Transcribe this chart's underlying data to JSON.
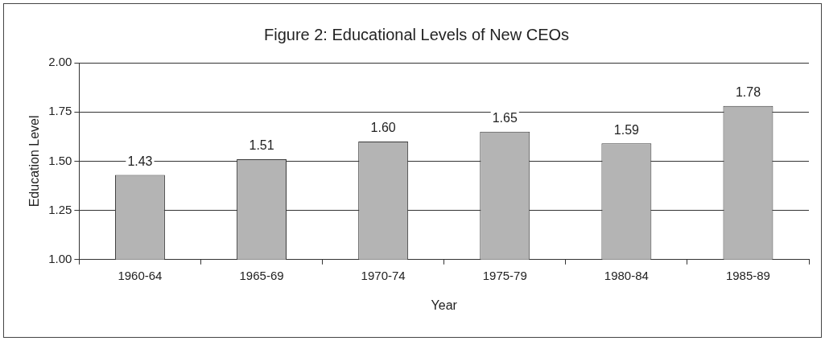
{
  "chart_data": {
    "type": "bar",
    "title": "Figure 2: Educational Levels of New CEOs",
    "xlabel": "Year",
    "ylabel": "Education Level",
    "categories": [
      "1960-64",
      "1965-69",
      "1970-74",
      "1975-79",
      "1980-84",
      "1985-89"
    ],
    "values": [
      1.43,
      1.51,
      1.6,
      1.65,
      1.59,
      1.78
    ],
    "value_labels": [
      "1.43",
      "1.51",
      "1.60",
      "1.65",
      "1.59",
      "1.78"
    ],
    "color": "#b4b4b4",
    "ylim": [
      1,
      2
    ],
    "yticks": [
      {
        "value": 1,
        "label": "1.00"
      },
      {
        "value": 1.25,
        "label": "1.25"
      },
      {
        "value": 1.5,
        "label": "1.50"
      },
      {
        "value": 1.75,
        "label": "1.75"
      },
      {
        "value": 2,
        "label": "2.00"
      }
    ],
    "grid": "y",
    "legend": false
  }
}
